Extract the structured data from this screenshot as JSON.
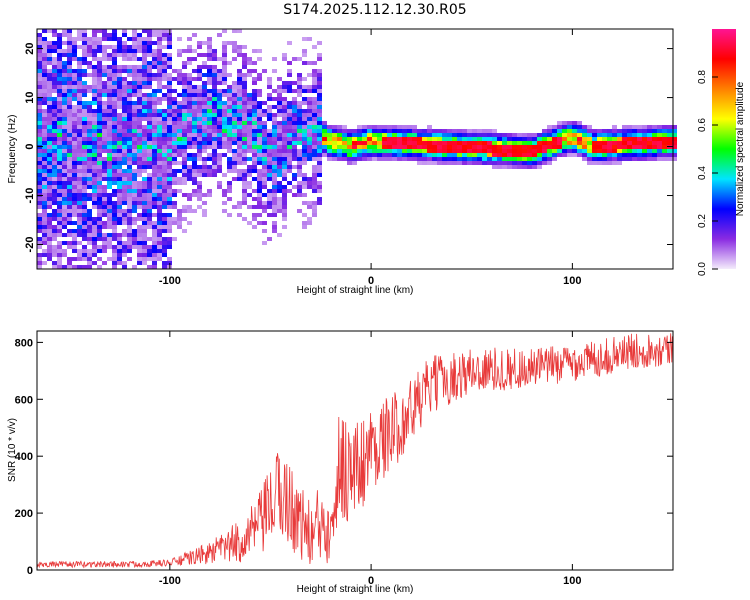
{
  "title": "S174.2025.112.12.30.R05",
  "chart_data": [
    {
      "type": "heatmap",
      "xlabel": "Height of straight line (km)",
      "ylabel": "Frequency (Hz)",
      "xlim": [
        -166,
        150
      ],
      "ylim": [
        -25,
        24
      ],
      "xticks": [
        -100,
        0,
        100
      ],
      "yticks": [
        20,
        10,
        0,
        -10,
        -20
      ],
      "colorbar": {
        "label": "Normalized spectral amplitude",
        "range": [
          0,
          1
        ],
        "ticks": [
          0.0,
          0.2,
          0.4,
          0.6,
          0.8
        ],
        "tick_labels": [
          "0.0",
          "0.2",
          "0.4",
          "0.6",
          "0.8"
        ],
        "colormap": [
          "#f4ecfb",
          "#8a2be2",
          "#0000ff",
          "#00e5ff",
          "#00ff00",
          "#ffff00",
          "#ff8000",
          "#ff0000",
          "#ff1493"
        ]
      },
      "ridge_center_hz": [
        {
          "x": -166,
          "y": 2
        },
        {
          "x": -140,
          "y": 0
        },
        {
          "x": -120,
          "y": 1
        },
        {
          "x": -100,
          "y": 0
        },
        {
          "x": -90,
          "y": 4
        },
        {
          "x": -80,
          "y": 7
        },
        {
          "x": -70,
          "y": 5
        },
        {
          "x": -60,
          "y": 3
        },
        {
          "x": -50,
          "y": -2
        },
        {
          "x": -40,
          "y": 2
        },
        {
          "x": -30,
          "y": 3
        },
        {
          "x": -20,
          "y": 1
        },
        {
          "x": -10,
          "y": 0
        },
        {
          "x": 0,
          "y": 1
        },
        {
          "x": 40,
          "y": 0
        },
        {
          "x": 80,
          "y": -1
        },
        {
          "x": 100,
          "y": 2
        },
        {
          "x": 110,
          "y": 0
        },
        {
          "x": 150,
          "y": 1
        }
      ]
    },
    {
      "type": "line",
      "xlabel": "Height of straight line (km)",
      "ylabel": "SNR (10 * v/v)",
      "xlim": [
        -166,
        150
      ],
      "ylim": [
        0,
        840
      ],
      "xticks": [
        -100,
        0,
        100
      ],
      "yticks": [
        800,
        600,
        400,
        200,
        0
      ],
      "line_color": "#e83a3a",
      "series": [
        {
          "envelope": [
            {
              "x": -166,
              "y": 20
            },
            {
              "x": -120,
              "y": 20
            },
            {
              "x": -100,
              "y": 25
            },
            {
              "x": -80,
              "y": 60
            },
            {
              "x": -65,
              "y": 100
            },
            {
              "x": -55,
              "y": 160
            },
            {
              "x": -45,
              "y": 280
            },
            {
              "x": -38,
              "y": 200
            },
            {
              "x": -30,
              "y": 120
            },
            {
              "x": -22,
              "y": 180
            },
            {
              "x": -15,
              "y": 380
            },
            {
              "x": -8,
              "y": 340
            },
            {
              "x": 0,
              "y": 430
            },
            {
              "x": 10,
              "y": 480
            },
            {
              "x": 20,
              "y": 560
            },
            {
              "x": 30,
              "y": 650
            },
            {
              "x": 50,
              "y": 700
            },
            {
              "x": 80,
              "y": 710
            },
            {
              "x": 110,
              "y": 740
            },
            {
              "x": 130,
              "y": 770
            },
            {
              "x": 150,
              "y": 780
            }
          ],
          "noise_amplitude": [
            {
              "x": -166,
              "y": 10
            },
            {
              "x": -100,
              "y": 12
            },
            {
              "x": -80,
              "y": 40
            },
            {
              "x": -60,
              "y": 90
            },
            {
              "x": -45,
              "y": 170
            },
            {
              "x": -30,
              "y": 120
            },
            {
              "x": -15,
              "y": 220
            },
            {
              "x": 0,
              "y": 150
            },
            {
              "x": 20,
              "y": 120
            },
            {
              "x": 40,
              "y": 90
            },
            {
              "x": 80,
              "y": 70
            },
            {
              "x": 150,
              "y": 60
            }
          ]
        }
      ]
    }
  ]
}
